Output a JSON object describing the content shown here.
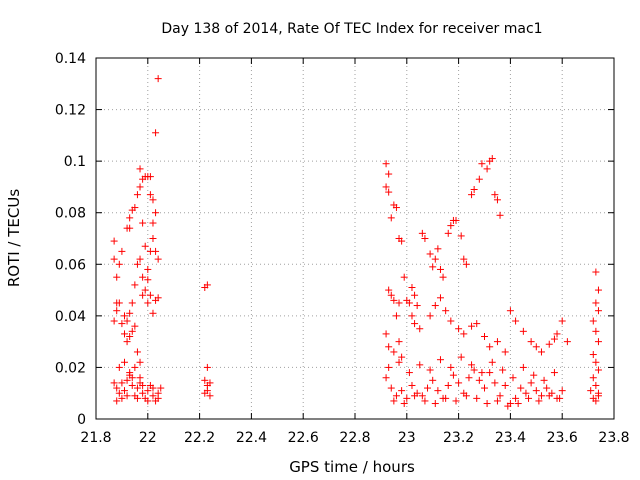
{
  "chart_data": {
    "type": "scatter",
    "title": "Day 138 of 2014, Rate Of TEC Index for receiver mac1",
    "xlabel": "GPS time / hours",
    "ylabel": "ROTI / TECUs",
    "xlim": [
      21.8,
      23.8
    ],
    "ylim": [
      0,
      0.14
    ],
    "xticks": [
      "21.8",
      "22",
      "22.2",
      "22.4",
      "22.6",
      "22.8",
      "23",
      "23.2",
      "23.4",
      "23.6",
      "23.8"
    ],
    "yticks": [
      "0",
      "0.02",
      "0.04",
      "0.06",
      "0.08",
      "0.1",
      "0.12",
      "0.14"
    ],
    "marker": "+",
    "color": "#ff0000",
    "grid": true,
    "series": [
      {
        "name": "mac1",
        "points": [
          [
            21.87,
            0.069
          ],
          [
            21.87,
            0.062
          ],
          [
            21.88,
            0.055
          ],
          [
            21.88,
            0.045
          ],
          [
            21.87,
            0.038
          ],
          [
            21.88,
            0.042
          ],
          [
            21.89,
            0.06
          ],
          [
            21.9,
            0.065
          ],
          [
            21.89,
            0.045
          ],
          [
            21.9,
            0.037
          ],
          [
            21.91,
            0.04
          ],
          [
            21.92,
            0.074
          ],
          [
            21.93,
            0.074
          ],
          [
            21.93,
            0.078
          ],
          [
            21.94,
            0.081
          ],
          [
            21.95,
            0.082
          ],
          [
            21.96,
            0.087
          ],
          [
            21.97,
            0.09
          ],
          [
            21.97,
            0.097
          ],
          [
            21.98,
            0.093
          ],
          [
            21.99,
            0.094
          ],
          [
            22.0,
            0.094
          ],
          [
            22.01,
            0.094
          ],
          [
            22.01,
            0.087
          ],
          [
            22.02,
            0.085
          ],
          [
            22.03,
            0.08
          ],
          [
            22.02,
            0.076
          ],
          [
            22.03,
            0.065
          ],
          [
            22.04,
            0.062
          ],
          [
            22.04,
            0.132
          ],
          [
            22.03,
            0.111
          ],
          [
            22.02,
            0.07
          ],
          [
            22.01,
            0.065
          ],
          [
            22.0,
            0.058
          ],
          [
            21.99,
            0.067
          ],
          [
            21.98,
            0.076
          ],
          [
            21.97,
            0.062
          ],
          [
            21.96,
            0.06
          ],
          [
            21.95,
            0.052
          ],
          [
            21.94,
            0.045
          ],
          [
            21.93,
            0.041
          ],
          [
            21.92,
            0.038
          ],
          [
            21.91,
            0.033
          ],
          [
            21.92,
            0.03
          ],
          [
            21.93,
            0.032
          ],
          [
            21.94,
            0.034
          ],
          [
            21.95,
            0.036
          ],
          [
            21.96,
            0.026
          ],
          [
            21.97,
            0.022
          ],
          [
            21.98,
            0.048
          ],
          [
            21.99,
            0.05
          ],
          [
            22.0,
            0.045
          ],
          [
            22.01,
            0.048
          ],
          [
            22.02,
            0.041
          ],
          [
            22.03,
            0.046
          ],
          [
            22.04,
            0.047
          ],
          [
            21.98,
            0.055
          ],
          [
            22.0,
            0.054
          ],
          [
            21.87,
            0.014
          ],
          [
            21.88,
            0.012
          ],
          [
            21.89,
            0.01
          ],
          [
            21.9,
            0.008
          ],
          [
            21.91,
            0.011
          ],
          [
            21.92,
            0.015
          ],
          [
            21.93,
            0.017
          ],
          [
            21.94,
            0.013
          ],
          [
            21.95,
            0.009
          ],
          [
            21.96,
            0.012
          ],
          [
            21.97,
            0.014
          ],
          [
            21.98,
            0.01
          ],
          [
            21.99,
            0.008
          ],
          [
            22.0,
            0.011
          ],
          [
            22.01,
            0.013
          ],
          [
            22.02,
            0.009
          ],
          [
            22.03,
            0.007
          ],
          [
            22.04,
            0.01
          ],
          [
            22.05,
            0.012
          ],
          [
            21.88,
            0.007
          ],
          [
            21.9,
            0.014
          ],
          [
            21.92,
            0.009
          ],
          [
            21.94,
            0.016
          ],
          [
            21.96,
            0.008
          ],
          [
            21.98,
            0.013
          ],
          [
            22.0,
            0.007
          ],
          [
            22.02,
            0.012
          ],
          [
            22.04,
            0.008
          ],
          [
            21.89,
            0.02
          ],
          [
            21.91,
            0.022
          ],
          [
            21.93,
            0.018
          ],
          [
            21.95,
            0.02
          ],
          [
            21.97,
            0.016
          ],
          [
            22.22,
            0.051
          ],
          [
            22.23,
            0.052
          ],
          [
            22.23,
            0.02
          ],
          [
            22.22,
            0.015
          ],
          [
            22.23,
            0.013
          ],
          [
            22.22,
            0.01
          ],
          [
            22.24,
            0.009
          ],
          [
            22.23,
            0.011
          ],
          [
            22.24,
            0.014
          ],
          [
            22.92,
            0.099
          ],
          [
            22.93,
            0.095
          ],
          [
            22.92,
            0.09
          ],
          [
            22.93,
            0.088
          ],
          [
            22.95,
            0.083
          ],
          [
            22.96,
            0.082
          ],
          [
            22.94,
            0.078
          ],
          [
            22.97,
            0.07
          ],
          [
            22.98,
            0.069
          ],
          [
            22.99,
            0.055
          ],
          [
            22.93,
            0.05
          ],
          [
            22.94,
            0.048
          ],
          [
            22.95,
            0.046
          ],
          [
            22.96,
            0.04
          ],
          [
            22.97,
            0.045
          ],
          [
            22.92,
            0.033
          ],
          [
            22.93,
            0.028
          ],
          [
            22.95,
            0.026
          ],
          [
            22.97,
            0.03
          ],
          [
            22.98,
            0.024
          ],
          [
            23.0,
            0.046
          ],
          [
            23.01,
            0.045
          ],
          [
            23.02,
            0.051
          ],
          [
            23.03,
            0.048
          ],
          [
            23.04,
            0.044
          ],
          [
            23.02,
            0.04
          ],
          [
            23.03,
            0.037
          ],
          [
            23.05,
            0.035
          ],
          [
            23.06,
            0.072
          ],
          [
            23.07,
            0.07
          ],
          [
            23.09,
            0.064
          ],
          [
            23.1,
            0.059
          ],
          [
            23.11,
            0.062
          ],
          [
            23.12,
            0.066
          ],
          [
            23.13,
            0.058
          ],
          [
            23.14,
            0.055
          ],
          [
            23.16,
            0.072
          ],
          [
            23.17,
            0.075
          ],
          [
            23.18,
            0.077
          ],
          [
            23.19,
            0.077
          ],
          [
            23.21,
            0.071
          ],
          [
            23.22,
            0.062
          ],
          [
            23.23,
            0.06
          ],
          [
            23.25,
            0.087
          ],
          [
            23.26,
            0.089
          ],
          [
            23.28,
            0.093
          ],
          [
            23.29,
            0.099
          ],
          [
            23.31,
            0.097
          ],
          [
            23.32,
            0.1
          ],
          [
            23.33,
            0.101
          ],
          [
            23.34,
            0.087
          ],
          [
            23.35,
            0.085
          ],
          [
            23.36,
            0.079
          ],
          [
            23.09,
            0.04
          ],
          [
            23.11,
            0.044
          ],
          [
            23.13,
            0.047
          ],
          [
            23.15,
            0.042
          ],
          [
            23.17,
            0.038
          ],
          [
            23.2,
            0.035
          ],
          [
            23.22,
            0.033
          ],
          [
            23.25,
            0.036
          ],
          [
            23.27,
            0.037
          ],
          [
            23.3,
            0.032
          ],
          [
            23.32,
            0.028
          ],
          [
            23.35,
            0.03
          ],
          [
            23.38,
            0.026
          ],
          [
            23.4,
            0.042
          ],
          [
            23.42,
            0.038
          ],
          [
            23.45,
            0.034
          ],
          [
            23.48,
            0.03
          ],
          [
            23.5,
            0.028
          ],
          [
            23.52,
            0.026
          ],
          [
            23.55,
            0.029
          ],
          [
            23.57,
            0.031
          ],
          [
            23.58,
            0.033
          ],
          [
            23.6,
            0.038
          ],
          [
            23.62,
            0.03
          ],
          [
            22.92,
            0.016
          ],
          [
            22.94,
            0.012
          ],
          [
            22.96,
            0.009
          ],
          [
            22.98,
            0.011
          ],
          [
            23.0,
            0.008
          ],
          [
            23.02,
            0.013
          ],
          [
            23.04,
            0.01
          ],
          [
            23.06,
            0.009
          ],
          [
            23.08,
            0.012
          ],
          [
            23.1,
            0.015
          ],
          [
            23.12,
            0.011
          ],
          [
            23.14,
            0.008
          ],
          [
            23.16,
            0.013
          ],
          [
            23.18,
            0.017
          ],
          [
            23.2,
            0.014
          ],
          [
            23.22,
            0.01
          ],
          [
            23.24,
            0.016
          ],
          [
            23.26,
            0.019
          ],
          [
            23.28,
            0.015
          ],
          [
            23.3,
            0.012
          ],
          [
            23.32,
            0.018
          ],
          [
            23.34,
            0.014
          ],
          [
            23.36,
            0.009
          ],
          [
            23.38,
            0.013
          ],
          [
            23.4,
            0.006
          ],
          [
            23.42,
            0.008
          ],
          [
            23.44,
            0.012
          ],
          [
            23.46,
            0.01
          ],
          [
            23.48,
            0.014
          ],
          [
            23.5,
            0.011
          ],
          [
            23.52,
            0.009
          ],
          [
            23.54,
            0.012
          ],
          [
            23.56,
            0.01
          ],
          [
            23.58,
            0.008
          ],
          [
            23.6,
            0.011
          ],
          [
            22.93,
            0.02
          ],
          [
            22.97,
            0.022
          ],
          [
            23.01,
            0.018
          ],
          [
            23.05,
            0.021
          ],
          [
            23.09,
            0.019
          ],
          [
            23.13,
            0.023
          ],
          [
            23.17,
            0.02
          ],
          [
            23.21,
            0.024
          ],
          [
            23.25,
            0.021
          ],
          [
            23.29,
            0.018
          ],
          [
            23.33,
            0.022
          ],
          [
            23.37,
            0.019
          ],
          [
            23.41,
            0.016
          ],
          [
            23.45,
            0.02
          ],
          [
            23.49,
            0.017
          ],
          [
            23.53,
            0.015
          ],
          [
            23.57,
            0.018
          ],
          [
            22.95,
            0.007
          ],
          [
            22.99,
            0.006
          ],
          [
            23.03,
            0.009
          ],
          [
            23.07,
            0.007
          ],
          [
            23.11,
            0.006
          ],
          [
            23.15,
            0.008
          ],
          [
            23.19,
            0.007
          ],
          [
            23.23,
            0.009
          ],
          [
            23.27,
            0.008
          ],
          [
            23.31,
            0.006
          ],
          [
            23.35,
            0.007
          ],
          [
            23.39,
            0.005
          ],
          [
            23.43,
            0.006
          ],
          [
            23.47,
            0.008
          ],
          [
            23.51,
            0.007
          ],
          [
            23.55,
            0.009
          ],
          [
            23.59,
            0.008
          ],
          [
            23.73,
            0.057
          ],
          [
            23.74,
            0.05
          ],
          [
            23.73,
            0.045
          ],
          [
            23.74,
            0.042
          ],
          [
            23.72,
            0.038
          ],
          [
            23.73,
            0.034
          ],
          [
            23.74,
            0.03
          ],
          [
            23.72,
            0.025
          ],
          [
            23.73,
            0.022
          ],
          [
            23.74,
            0.019
          ],
          [
            23.72,
            0.016
          ],
          [
            23.73,
            0.013
          ],
          [
            23.74,
            0.01
          ],
          [
            23.72,
            0.008
          ],
          [
            23.73,
            0.007
          ],
          [
            23.74,
            0.009
          ],
          [
            23.71,
            0.011
          ]
        ]
      }
    ]
  }
}
